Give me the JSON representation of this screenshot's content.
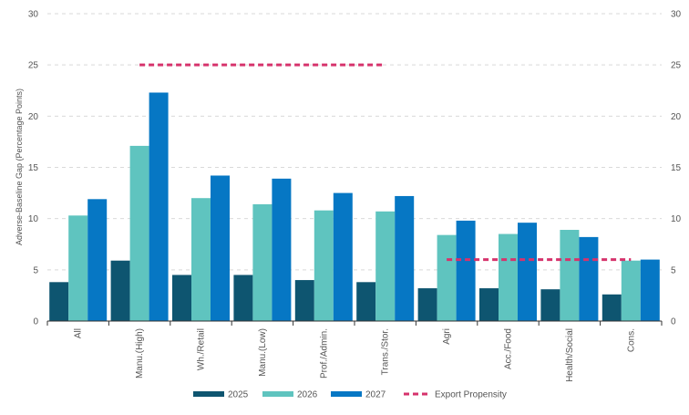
{
  "chart_data": {
    "type": "bar",
    "title": "",
    "xlabel": "",
    "ylabel": "Adverse-Baseline Gap (Percentage Points)",
    "ylim": [
      0,
      30
    ],
    "yticks": [
      0,
      5,
      10,
      15,
      20,
      25,
      30
    ],
    "grid": true,
    "secondary_axis_mirror": true,
    "categories": [
      "All",
      "Manu.(High)",
      "Wh./Retail",
      "Manu.(Low)",
      "Prof./Admin.",
      "Trans./Stor.",
      "Agri",
      "Acc./Food",
      "Health/Social",
      "Cons."
    ],
    "series": [
      {
        "name": "2025",
        "color": "#0e5570",
        "values": [
          3.8,
          5.9,
          4.5,
          4.5,
          4.0,
          3.8,
          3.2,
          3.2,
          3.1,
          2.6
        ]
      },
      {
        "name": "2026",
        "color": "#5fc4bf",
        "values": [
          10.3,
          17.1,
          12.0,
          11.4,
          10.8,
          10.7,
          8.4,
          8.5,
          8.9,
          5.9
        ]
      },
      {
        "name": "2027",
        "color": "#0677c4",
        "values": [
          11.9,
          22.3,
          14.2,
          13.9,
          12.5,
          12.2,
          9.8,
          9.6,
          8.2,
          6.0
        ]
      }
    ],
    "reference_lines": [
      {
        "name": "Export Propensity",
        "color": "#d6336c",
        "value": 25,
        "from_category": "Manu.(High)",
        "to_category": "Trans./Stor."
      },
      {
        "name": "Export Propensity",
        "color": "#d6336c",
        "value": 6,
        "from_category": "Agri",
        "to_category": "Cons."
      }
    ],
    "legend": {
      "position": "bottom",
      "items": [
        {
          "label": "2025",
          "kind": "bar",
          "color": "#0e5570"
        },
        {
          "label": "2026",
          "kind": "bar",
          "color": "#5fc4bf"
        },
        {
          "label": "2027",
          "kind": "bar",
          "color": "#0677c4"
        },
        {
          "label": "Export Propensity",
          "kind": "dash",
          "color": "#d6336c"
        }
      ]
    }
  }
}
